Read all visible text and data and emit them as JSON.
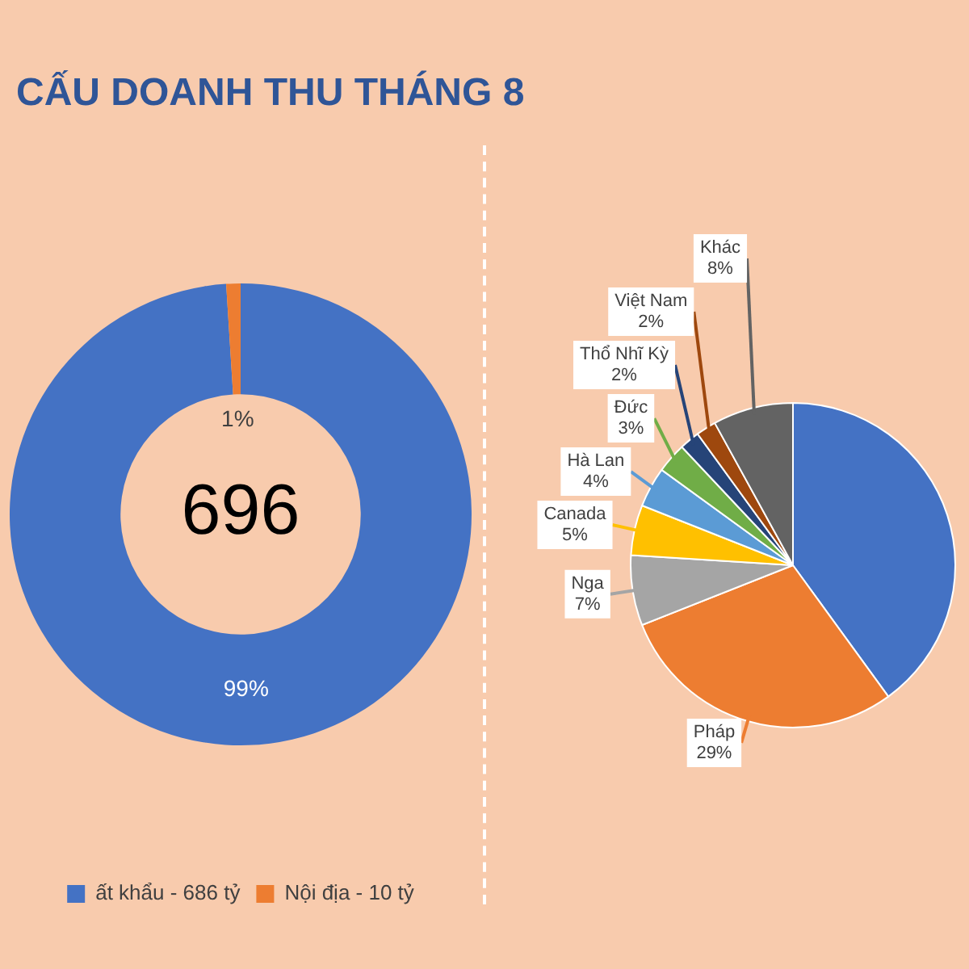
{
  "chart_data": [
    {
      "type": "donut",
      "title": "CẤU DOANH THU THÁNG 8",
      "categories": [
        "ất khẩu - 686 tỷ",
        "Nội địa - 10 tỷ"
      ],
      "values": [
        99,
        1
      ],
      "colors": [
        "#4472c4",
        "#ed7d31"
      ],
      "value_labels": [
        "99%",
        "1%"
      ],
      "annotations": [
        "696"
      ],
      "legend": "bottom"
    },
    {
      "type": "pie",
      "categories": [
        null,
        "Pháp",
        "Nga",
        "Canada",
        "Hà Lan",
        "Đức",
        "Thổ Nhĩ Kỳ",
        "Việt Nam",
        "Khác"
      ],
      "values": [
        40,
        29,
        7,
        5,
        4,
        3,
        2,
        2,
        8
      ],
      "colors": [
        "#4472c4",
        "#ed7d31",
        "#a5a5a5",
        "#ffc000",
        "#5b9bd5",
        "#70ad47",
        "#264478",
        "#9e480e",
        "#636363"
      ],
      "value_labels": [
        null,
        "29%",
        "7%",
        "5%",
        "4%",
        "3%",
        "2%",
        "2%",
        "8%"
      ],
      "legend": false
    }
  ]
}
